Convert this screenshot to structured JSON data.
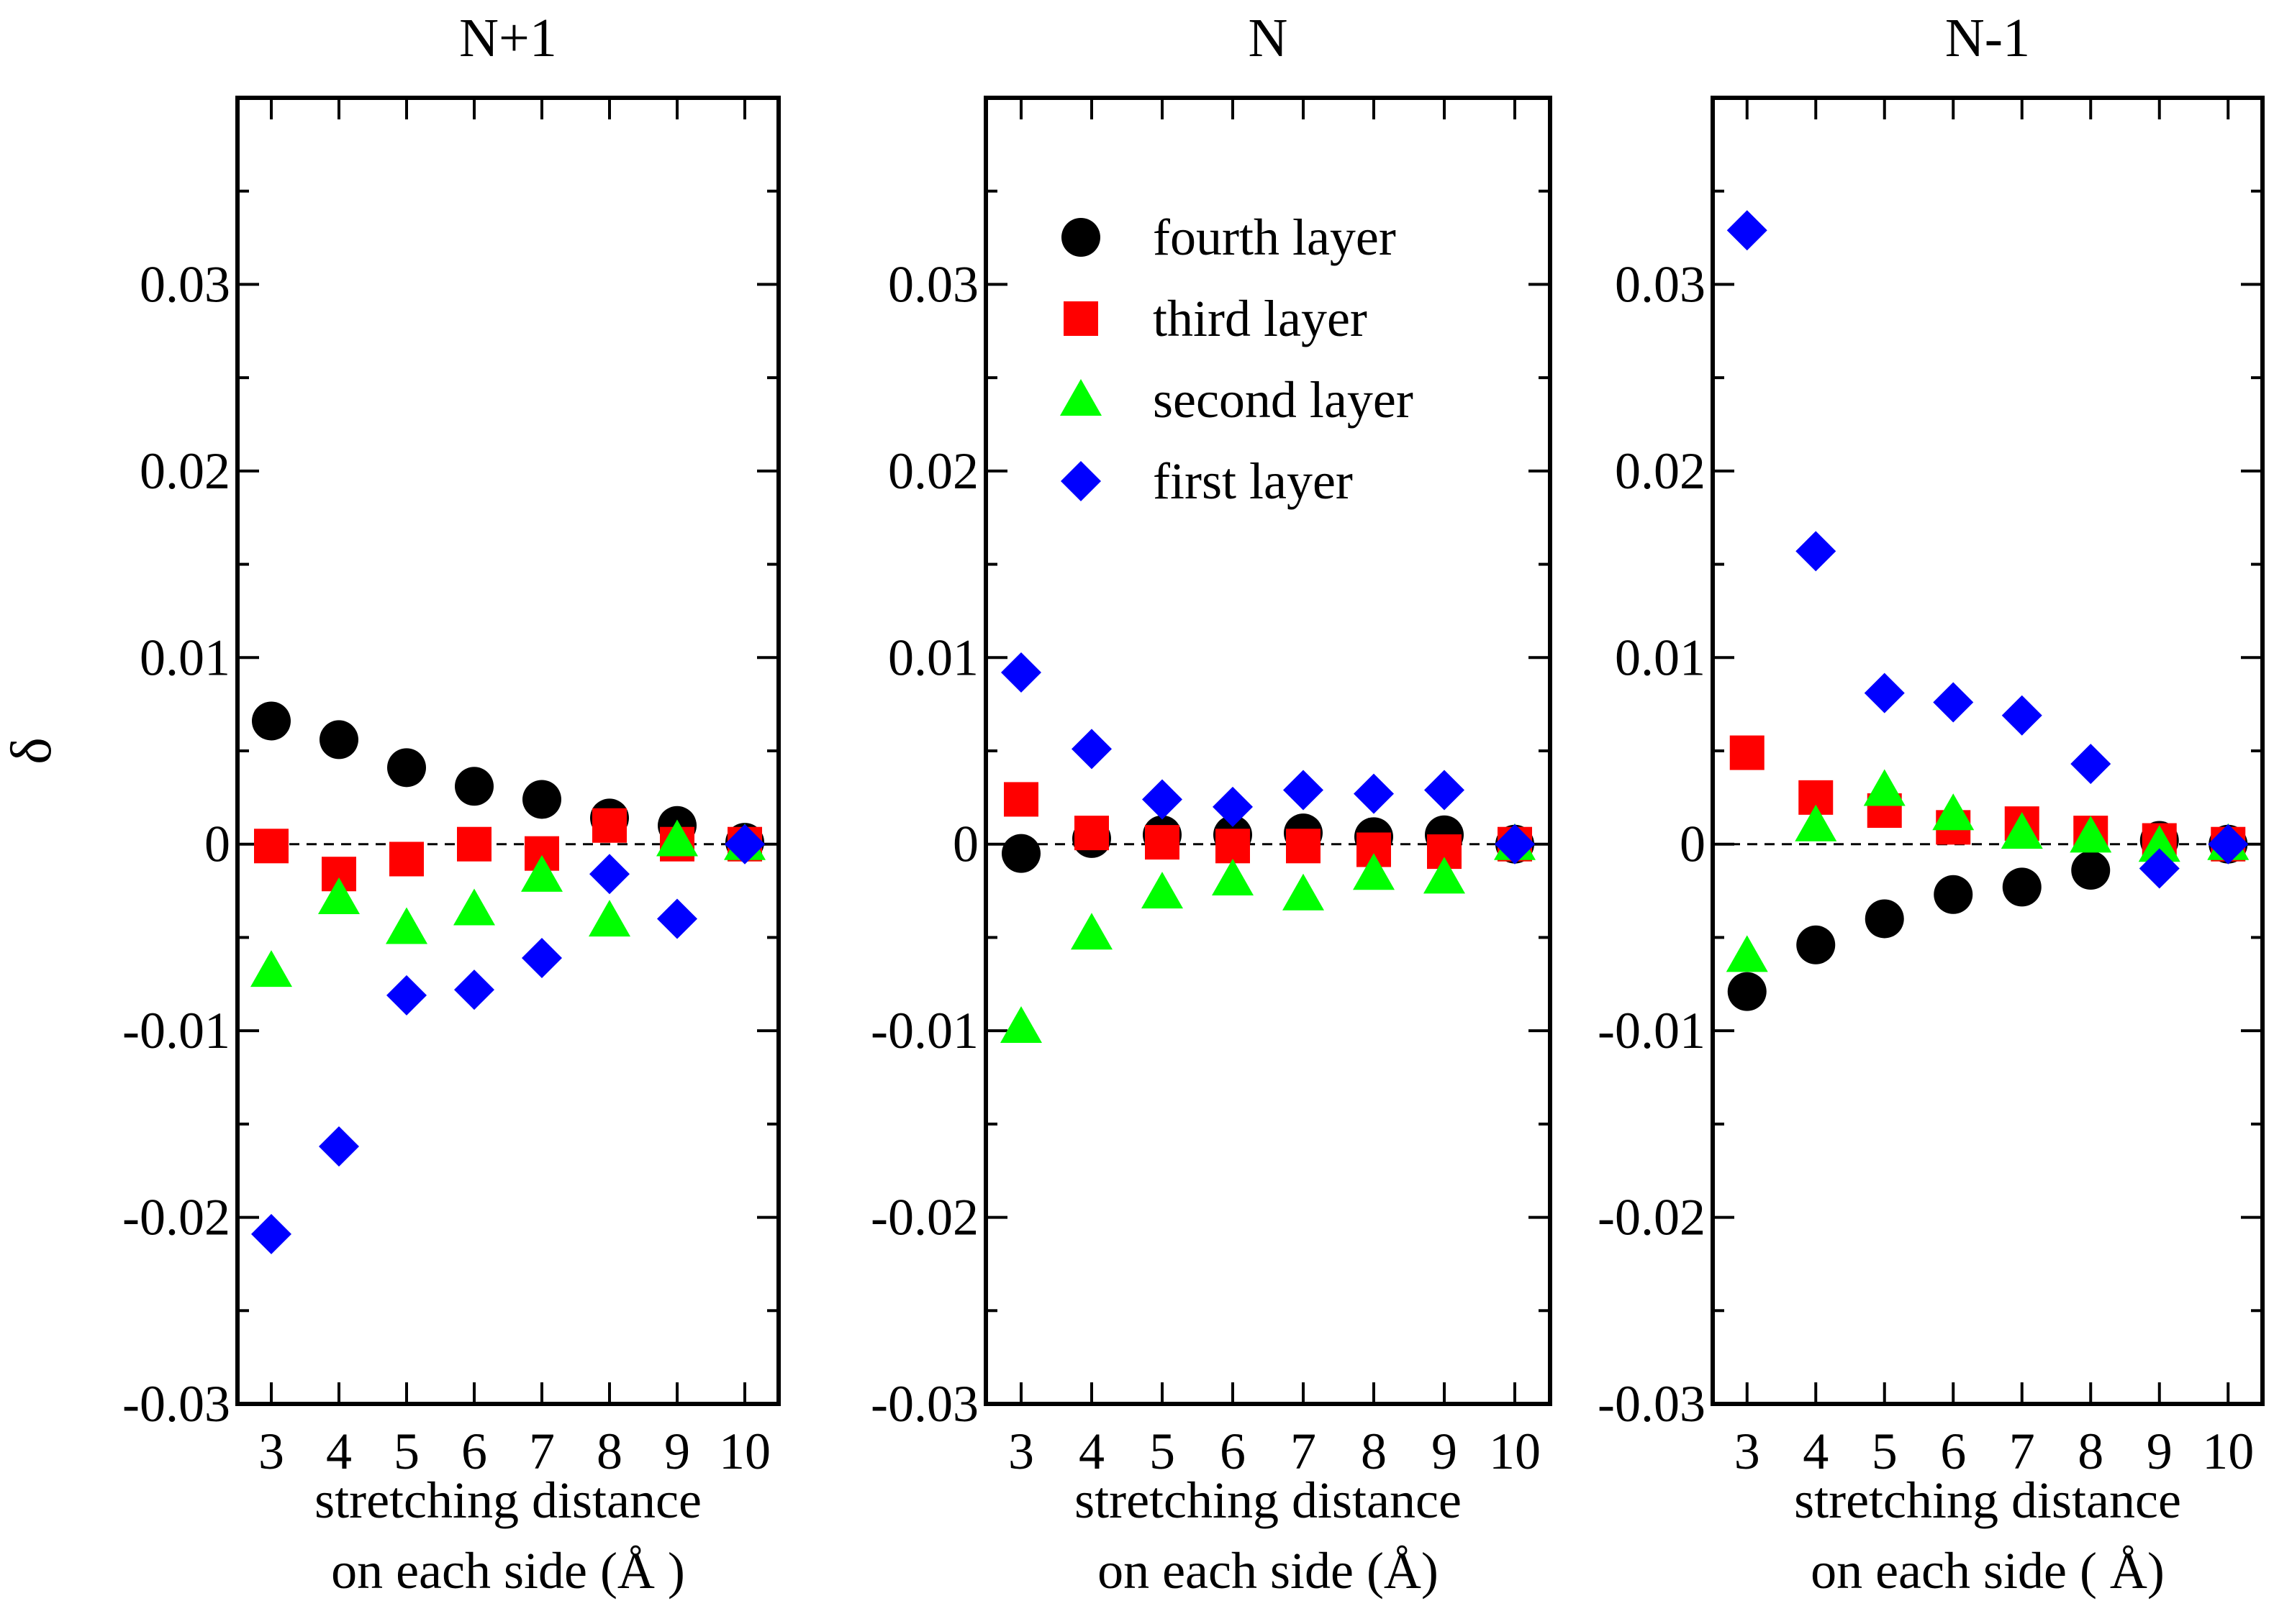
{
  "figure": {
    "ylabel": "δ",
    "colors": {
      "fourth layer": "#000000",
      "third layer": "#ff0000",
      "second layer": "#00ff00",
      "first layer": "#0000ff"
    },
    "markers": {
      "fourth layer": "circle",
      "third layer": "square",
      "second layer": "triangle",
      "first layer": "diamond"
    }
  },
  "chart_data": [
    {
      "type": "scatter",
      "title": "N+1",
      "xlabel_line1": "stretching distance",
      "xlabel_line2": "on each side (Å )",
      "ylabel": "δ",
      "xlim": [
        2.5,
        10.5
      ],
      "ylim": [
        -0.03,
        0.04
      ],
      "x_ticks": [
        3,
        4,
        5,
        6,
        7,
        8,
        9,
        10
      ],
      "y_ticks": [
        -0.03,
        -0.02,
        -0.01,
        0,
        0.01,
        0.02,
        0.03
      ],
      "y_tick_labels": [
        "-0.03",
        "-0.02",
        "-0.01",
        "0",
        "0.01",
        "0.02",
        "0.03"
      ],
      "x": [
        3,
        4,
        5,
        6,
        7,
        8,
        9,
        10
      ],
      "series": [
        {
          "name": "fourth layer",
          "values": [
            0.0066,
            0.0056,
            0.0041,
            0.0031,
            0.0024,
            0.0014,
            0.001,
            0.0001
          ]
        },
        {
          "name": "third layer",
          "values": [
            -0.0001,
            -0.0016,
            -0.0008,
            0.0,
            -0.0005,
            0.001,
            0.0,
            0.0
          ]
        },
        {
          "name": "second layer",
          "values": [
            -0.0068,
            -0.0029,
            -0.0045,
            -0.0035,
            -0.0017,
            -0.0041,
            0.0002,
            0.0
          ]
        },
        {
          "name": "first layer",
          "values": [
            -0.0209,
            -0.0162,
            -0.0081,
            -0.0078,
            -0.0061,
            -0.0016,
            -0.004,
            0.0
          ]
        }
      ]
    },
    {
      "type": "scatter",
      "title": "N",
      "xlabel_line1": "stretching distance",
      "xlabel_line2": "on each side (Å)",
      "ylabel": "δ",
      "xlim": [
        2.5,
        10.5
      ],
      "ylim": [
        -0.03,
        0.04
      ],
      "x_ticks": [
        3,
        4,
        5,
        6,
        7,
        8,
        9,
        10
      ],
      "y_ticks": [
        -0.03,
        -0.02,
        -0.01,
        0,
        0.01,
        0.02,
        0.03
      ],
      "y_tick_labels": [
        "-0.03",
        "-0.02",
        "-0.01",
        "0",
        "0.01",
        "0.02",
        "0.03"
      ],
      "legend": {
        "position": "top-right",
        "entries": [
          "fourth layer",
          "third layer",
          "second layer",
          "first layer"
        ]
      },
      "x": [
        3,
        4,
        5,
        6,
        7,
        8,
        9,
        10
      ],
      "series": [
        {
          "name": "fourth layer",
          "values": [
            -0.0005,
            0.0003,
            0.0005,
            0.0005,
            0.0006,
            0.0004,
            0.0005,
            0.0
          ]
        },
        {
          "name": "third layer",
          "values": [
            0.0024,
            0.0006,
            0.0001,
            -0.0001,
            -0.0001,
            -0.0003,
            -0.0004,
            0.0
          ]
        },
        {
          "name": "second layer",
          "values": [
            -0.0098,
            -0.0048,
            -0.0026,
            -0.0019,
            -0.0027,
            -0.0016,
            -0.0018,
            0.0
          ]
        },
        {
          "name": "first layer",
          "values": [
            0.0092,
            0.0051,
            0.0024,
            0.002,
            0.0029,
            0.0027,
            0.0029,
            0.0
          ]
        }
      ]
    },
    {
      "type": "scatter",
      "title": "N-1",
      "xlabel_line1": "stretching distance",
      "xlabel_line2": "on each side ( Å)",
      "ylabel": "δ",
      "xlim": [
        2.5,
        10.5
      ],
      "ylim": [
        -0.03,
        0.04
      ],
      "x_ticks": [
        3,
        4,
        5,
        6,
        7,
        8,
        9,
        10
      ],
      "y_ticks": [
        -0.03,
        -0.02,
        -0.01,
        0,
        0.01,
        0.02,
        0.03
      ],
      "y_tick_labels": [
        "-0.03",
        "-0.02",
        "-0.01",
        "0",
        "0.01",
        "0.02",
        "0.03"
      ],
      "x": [
        3,
        4,
        5,
        6,
        7,
        8,
        9,
        10
      ],
      "series": [
        {
          "name": "fourth layer",
          "values": [
            -0.0079,
            -0.0054,
            -0.004,
            -0.0027,
            -0.0023,
            -0.0014,
            0.0002,
            0.0
          ]
        },
        {
          "name": "third layer",
          "values": [
            0.0049,
            0.0025,
            0.0018,
            0.0009,
            0.0011,
            0.0006,
            0.0002,
            0.0
          ]
        },
        {
          "name": "second layer",
          "values": [
            -0.006,
            0.001,
            0.0029,
            0.0016,
            0.0006,
            0.0004,
            -0.0001,
            0.0
          ]
        },
        {
          "name": "first layer",
          "values": [
            0.0329,
            0.0157,
            0.0081,
            0.0076,
            0.0069,
            0.0043,
            -0.0013,
            0.0
          ]
        }
      ]
    }
  ]
}
